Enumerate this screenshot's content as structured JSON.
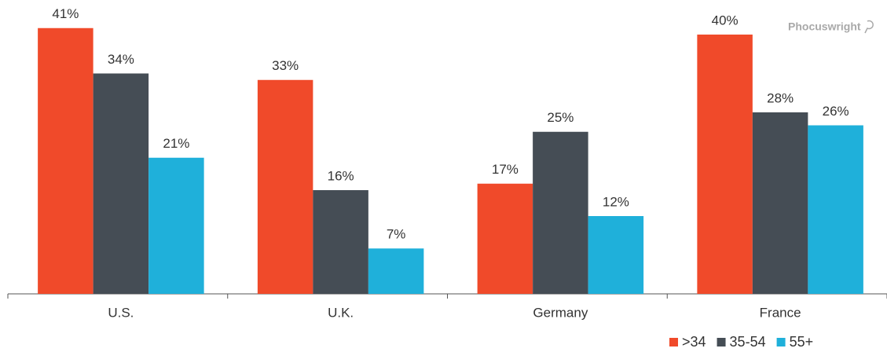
{
  "chart_data": {
    "type": "bar",
    "categories": [
      "U.S.",
      "U.K.",
      "Germany",
      "France"
    ],
    "series": [
      {
        "name": ">34",
        "color": "#f04a2a",
        "values": [
          41,
          33,
          17,
          40
        ],
        "value_labels": [
          "41%",
          "33%",
          "17%",
          "40%"
        ]
      },
      {
        "name": "35-54",
        "color": "#454d55",
        "values": [
          34,
          16,
          25,
          28
        ],
        "value_labels": [
          "34%",
          "16%",
          "25%",
          "28%"
        ]
      },
      {
        "name": "55+",
        "color": "#1fb0da",
        "values": [
          21,
          7,
          12,
          26
        ],
        "value_labels": [
          "21%",
          "7%",
          "12%",
          "26%"
        ]
      }
    ],
    "legend": "bottom-right",
    "watermark": "Phocuswright"
  }
}
